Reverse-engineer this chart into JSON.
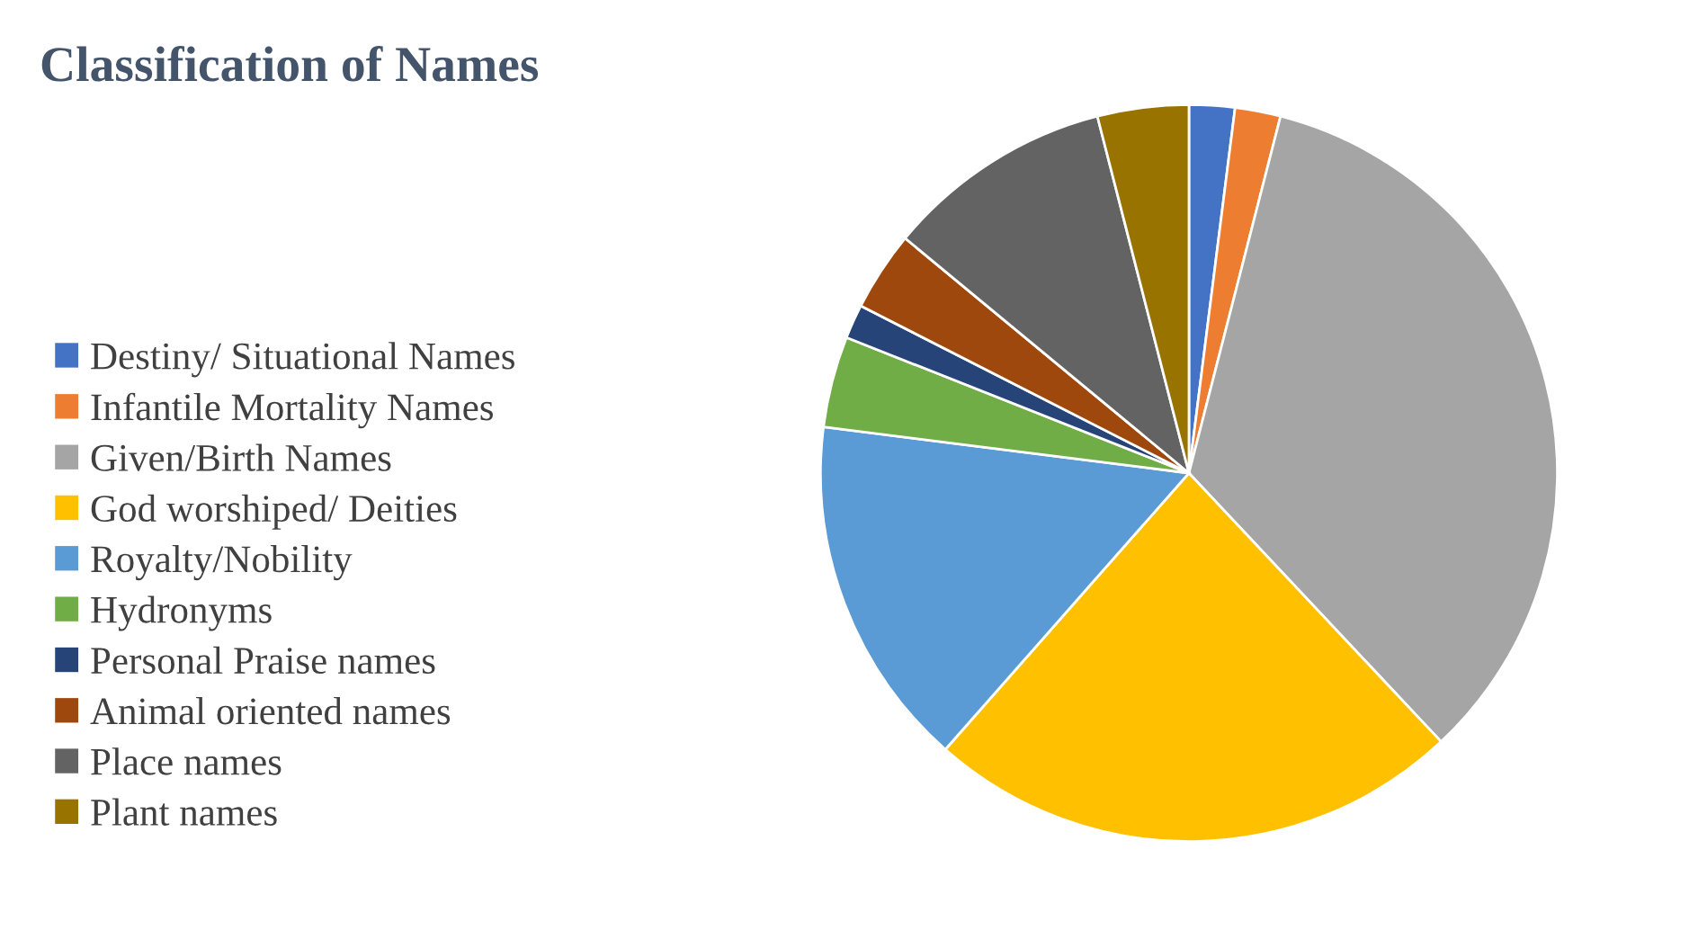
{
  "chart_data": {
    "type": "pie",
    "title": "Classification of Names",
    "categories": [
      "Destiny/ Situational Names",
      "Infantile Mortality Names",
      "Given/Birth Names",
      "God worshiped/ Deities",
      "Royalty/Nobility",
      "Hydronyms",
      "Personal Praise names",
      "Animal oriented names",
      "Place names",
      "Plant names"
    ],
    "values": [
      2,
      2,
      34,
      23.5,
      15.5,
      4,
      1.5,
      3.5,
      10,
      4
    ],
    "colors": [
      "#4472c4",
      "#ed7d31",
      "#a5a5a5",
      "#ffc000",
      "#5b9bd5",
      "#70ad47",
      "#264478",
      "#9e480e",
      "#636363",
      "#997300"
    ],
    "legend": "left"
  }
}
